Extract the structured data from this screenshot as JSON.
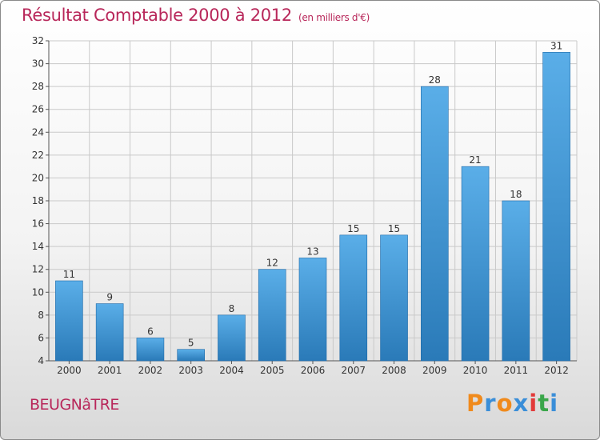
{
  "header": {
    "title": "Résultat Comptable 2000 à 2012",
    "subtitle": "(en milliers d'€)"
  },
  "footer": {
    "commune": "BEUGNâTRE",
    "logo_text": "Proxiti",
    "logo_colors": [
      "#f08a1c",
      "#3a8ed8",
      "#f08a1c",
      "#3a8ed8",
      "#e23a3a",
      "#3aa64a",
      "#3a8ed8"
    ]
  },
  "colors": {
    "bar_top": "#5aaee8",
    "bar_bottom": "#2a7ab8",
    "grid": "#c9c9c9",
    "title": "#b8275a"
  },
  "chart_data": {
    "type": "bar",
    "title": "Résultat Comptable 2000 à 2012",
    "xlabel": "",
    "ylabel": "",
    "categories": [
      "2000",
      "2001",
      "2002",
      "2003",
      "2004",
      "2005",
      "2006",
      "2007",
      "2008",
      "2009",
      "2010",
      "2011",
      "2012"
    ],
    "values": [
      11,
      9,
      6,
      5,
      8,
      12,
      13,
      15,
      15,
      28,
      21,
      18,
      31
    ],
    "ylim": [
      4,
      32
    ],
    "yticks": [
      4,
      6,
      8,
      10,
      12,
      14,
      16,
      18,
      20,
      22,
      24,
      26,
      28,
      30,
      32
    ],
    "grid": true
  }
}
